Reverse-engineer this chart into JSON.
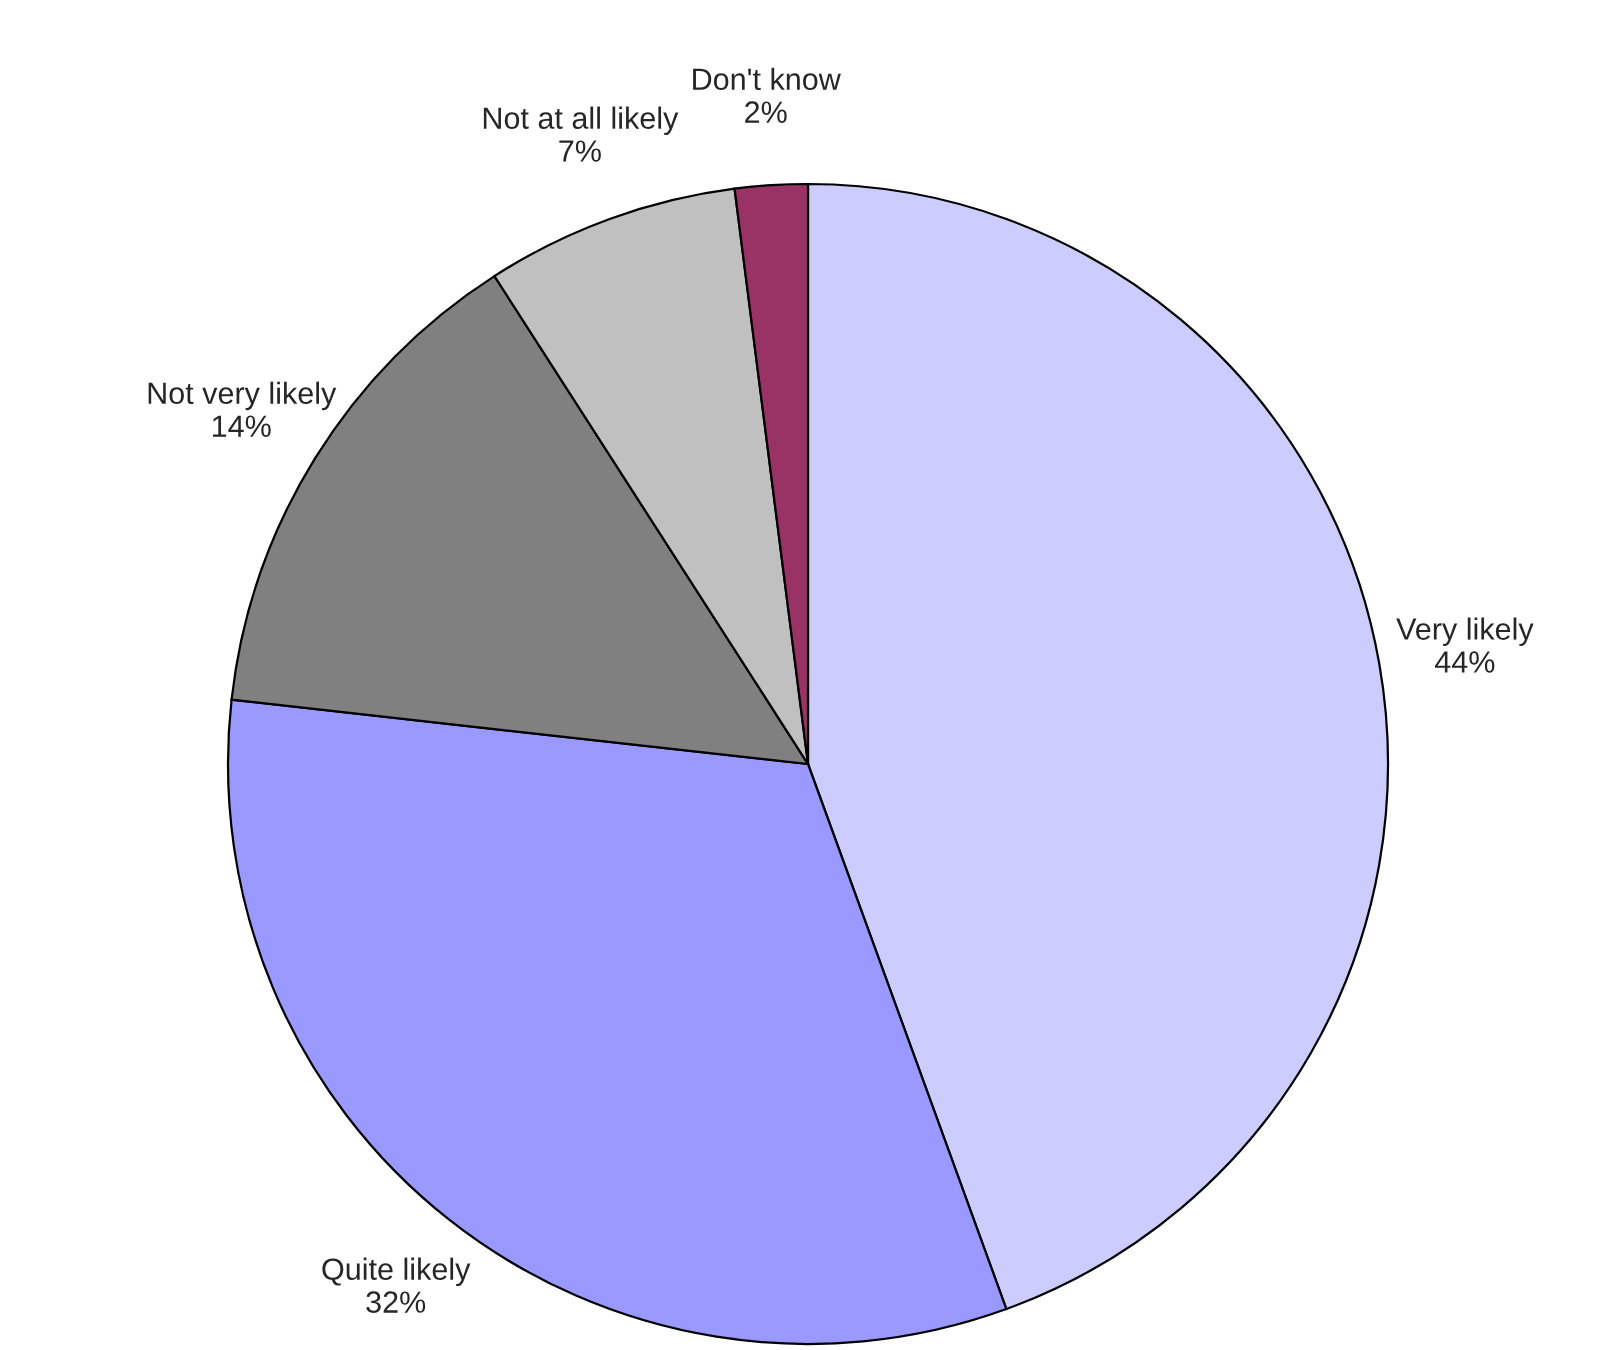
{
  "chart_data": {
    "type": "pie",
    "categories": [
      "Very likely",
      "Quite likely",
      "Not very likely",
      "Not at all likely",
      "Don't know"
    ],
    "values": [
      44,
      32,
      14,
      7,
      2
    ],
    "value_labels": [
      "44%",
      "32%",
      "14%",
      "7%",
      "2%"
    ],
    "colors": [
      "#ccccff",
      "#9999ff",
      "#808080",
      "#c0c0c0",
      "#993366"
    ],
    "legend": false
  }
}
